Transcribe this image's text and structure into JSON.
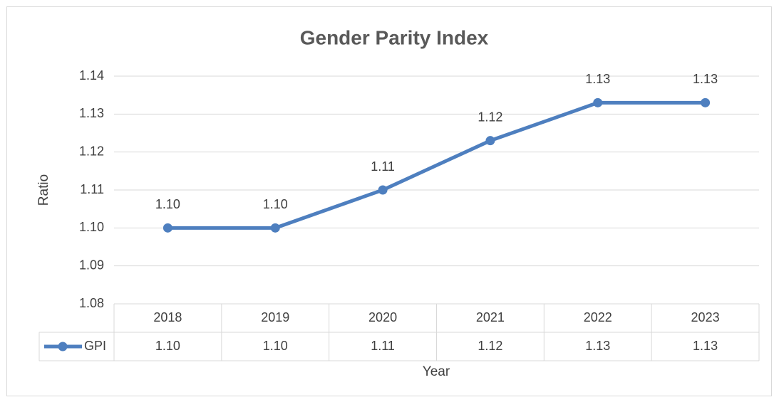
{
  "chart_data": {
    "type": "line",
    "title": "Gender Parity Index",
    "x_label": "Year",
    "y_label": "Ratio",
    "categories": [
      "2018",
      "2019",
      "2020",
      "2021",
      "2022",
      "2023"
    ],
    "series": [
      {
        "name": "GPI",
        "color": "#4e7fbf",
        "values": [
          1.1,
          1.1,
          1.11,
          1.123,
          1.133,
          1.133
        ],
        "value_labels": [
          "1.10",
          "1.10",
          "1.11",
          "1.12",
          "1.13",
          "1.13"
        ]
      }
    ],
    "ylim": [
      1.08,
      1.14
    ],
    "yticks": [
      1.08,
      1.09,
      {
        "value": 1.1,
        "label": "1.10"
      },
      1.11,
      1.12,
      1.13,
      1.14
    ],
    "grid": true,
    "data_table": true
  }
}
